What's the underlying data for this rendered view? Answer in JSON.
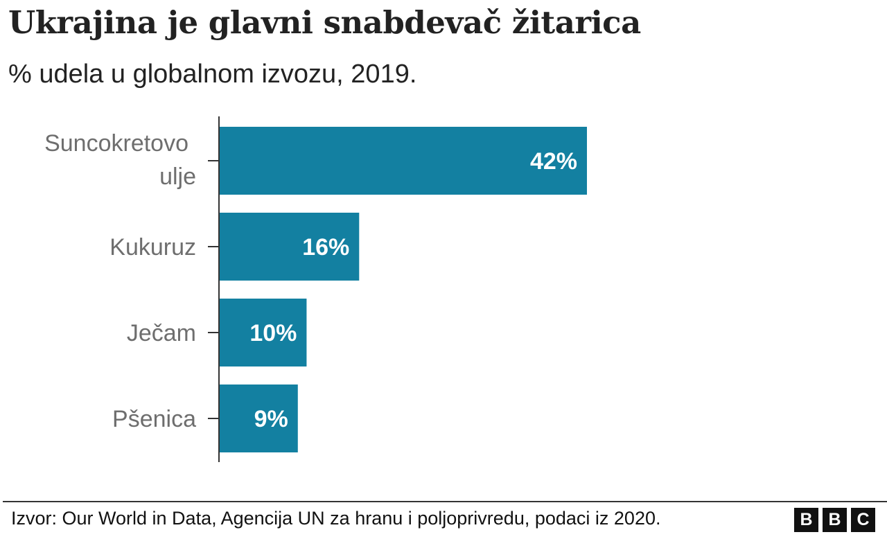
{
  "title": "Ukrajina je glavni snabdevač žitarica",
  "subtitle": "% udela u globalnom izvozu, 2019.",
  "chart_data": {
    "type": "bar",
    "orientation": "horizontal",
    "categories": [
      [
        "Suncokretovo",
        "ulje"
      ],
      [
        "Kukuruz"
      ],
      [
        "Ječam"
      ],
      [
        "Pšenica"
      ]
    ],
    "values": [
      42,
      16,
      10,
      9
    ],
    "data_labels": [
      "42%",
      "16%",
      "10%",
      "9%"
    ],
    "xlim": [
      0,
      42
    ],
    "grid": false,
    "bar_color": "#1380a1",
    "label_color": "#6e6e6e"
  },
  "footer": {
    "source": "Izvor: Our World in Data, Agencija UN za hranu i poljoprivredu, podaci iz 2020.",
    "logo": [
      "B",
      "B",
      "C"
    ]
  }
}
